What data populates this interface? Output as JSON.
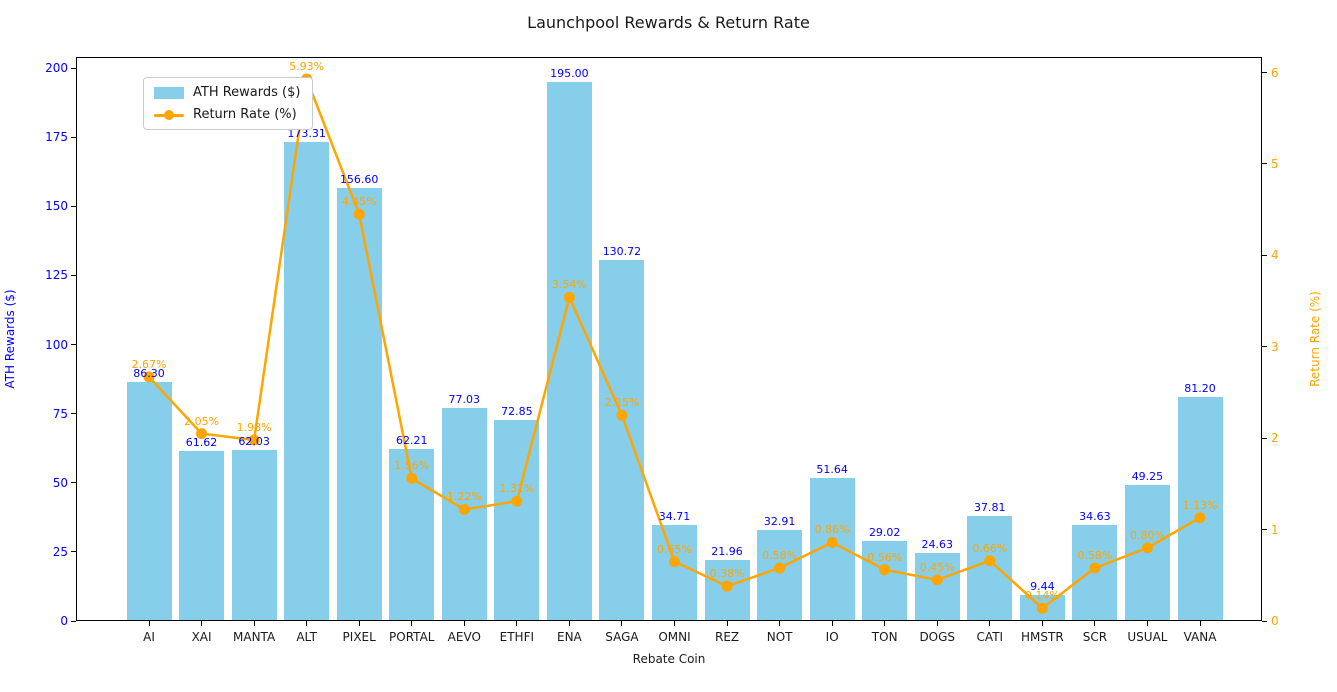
{
  "title": "Launchpool Rewards & Return Rate",
  "chart_data": {
    "type": "bar+line",
    "title": "Launchpool Rewards & Return Rate",
    "xlabel": "Rebate Coin",
    "categories": [
      "AI",
      "XAI",
      "MANTA",
      "ALT",
      "PIXEL",
      "PORTAL",
      "AEVO",
      "ETHFI",
      "ENA",
      "SAGA",
      "OMNI",
      "REZ",
      "NOT",
      "IO",
      "TON",
      "DOGS",
      "CATI",
      "HMSTR",
      "SCR",
      "USUAL",
      "VANA"
    ],
    "series": [
      {
        "name": "ATH Rewards ($)",
        "type": "bar",
        "axis": "left",
        "color": "#87CEEB",
        "label_color": "#0000ff",
        "values": [
          86.3,
          61.62,
          62.03,
          173.31,
          156.6,
          62.21,
          77.03,
          72.85,
          195.0,
          130.72,
          34.71,
          21.96,
          32.91,
          51.64,
          29.02,
          24.63,
          37.81,
          9.44,
          34.63,
          49.25,
          81.2
        ]
      },
      {
        "name": "Return Rate (%)",
        "type": "line",
        "axis": "right",
        "color": "#FFA500",
        "label_color": "#FFA500",
        "values": [
          2.67,
          2.05,
          1.98,
          5.93,
          4.45,
          1.56,
          1.22,
          1.31,
          3.54,
          2.25,
          0.65,
          0.38,
          0.58,
          0.86,
          0.56,
          0.45,
          0.66,
          0.14,
          0.58,
          0.8,
          1.13
        ]
      }
    ],
    "left_axis": {
      "label": "ATH Rewards ($)",
      "color": "#0000ff",
      "ticks": [
        0,
        25,
        50,
        75,
        100,
        125,
        150,
        175,
        200
      ],
      "range": [
        0,
        204
      ]
    },
    "right_axis": {
      "label": "Return Rate (%)",
      "color": "#FFA500",
      "ticks": [
        0,
        1,
        2,
        3,
        4,
        5,
        6
      ],
      "range": [
        0,
        6.17
      ]
    },
    "legend": {
      "position": "upper-left",
      "entries": [
        "ATH Rewards ($)",
        "Return Rate (%)"
      ]
    },
    "grid": false
  }
}
